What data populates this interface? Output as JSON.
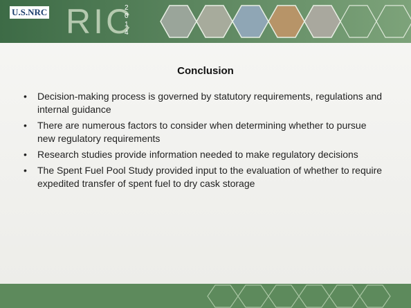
{
  "header": {
    "logo": "U.S.NRC",
    "event": "RIC",
    "year": [
      "2",
      "0",
      "1",
      "4"
    ]
  },
  "slide": {
    "title": "Conclusion",
    "bullets": [
      "Decision-making process is governed by statutory requirements, regulations and internal guidance",
      "There are numerous factors to consider when determining whether to pursue new regulatory requirements",
      "Research studies provide information needed to make regulatory decisions",
      "The Spent Fuel Pool Study provided input to the evaluation of whether to require expedited transfer of spent fuel to dry cask storage"
    ]
  }
}
